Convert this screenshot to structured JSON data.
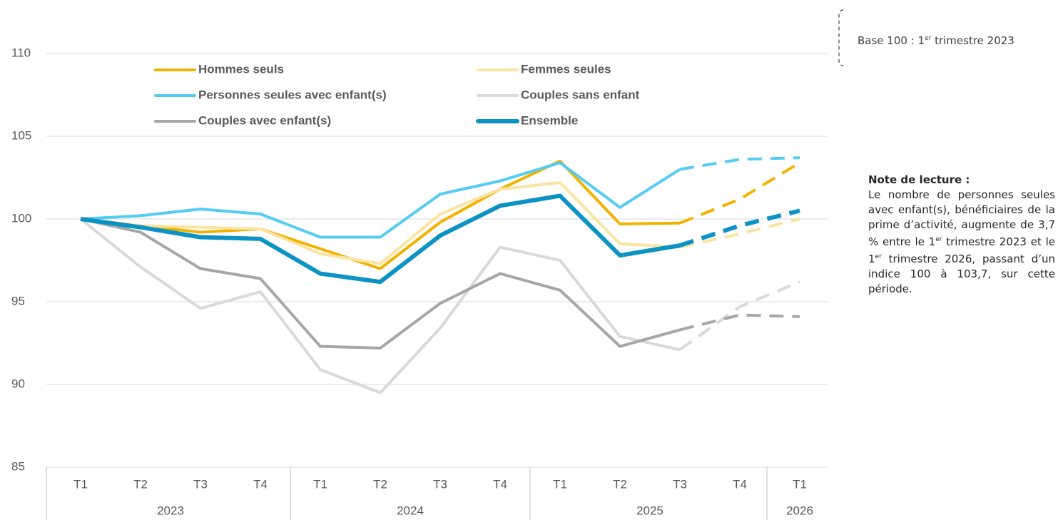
{
  "chart_data": {
    "type": "line",
    "categories": [
      "T1",
      "T2",
      "T3",
      "T4",
      "T1",
      "T2",
      "T3",
      "T4",
      "T1",
      "T2",
      "T3",
      "T4",
      "T1"
    ],
    "groups": [
      {
        "label": "2023",
        "span": 4
      },
      {
        "label": "2024",
        "span": 4
      },
      {
        "label": "2025",
        "span": 4
      },
      {
        "label": "2026",
        "span": 1
      }
    ],
    "ylim": [
      85,
      110
    ],
    "yticks": [
      85,
      90,
      95,
      100,
      105,
      110
    ],
    "grid": true,
    "legend": "top",
    "series": [
      {
        "name": "Hommes seuls",
        "color": "#f2b200",
        "width": 4,
        "dash_from": 10,
        "values": [
          100,
          99.6,
          99.2,
          99.4,
          98.2,
          97.0,
          99.8,
          101.8,
          103.5,
          99.7,
          99.75,
          101.2,
          103.4
        ]
      },
      {
        "name": "Femmes seules",
        "color": "#fbe4a2",
        "width": 4,
        "dash_from": 10,
        "values": [
          100,
          99.6,
          99.5,
          99.4,
          97.9,
          97.3,
          100.3,
          101.8,
          102.2,
          98.5,
          98.3,
          99.1,
          100.0
        ]
      },
      {
        "name": "Personnes seules avec enfant(s)",
        "color": "#55ccf2",
        "width": 4,
        "dash_from": 10,
        "values": [
          100,
          100.2,
          100.6,
          100.3,
          98.9,
          98.9,
          101.5,
          102.3,
          103.4,
          100.7,
          103.0,
          103.6,
          103.7
        ]
      },
      {
        "name": "Couples sans enfant",
        "color": "#d9d9d9",
        "width": 4,
        "dash_from": 10,
        "values": [
          100,
          97.1,
          94.6,
          95.6,
          90.9,
          89.5,
          93.4,
          98.3,
          97.5,
          92.9,
          92.1,
          94.7,
          96.2
        ]
      },
      {
        "name": "Couples avec enfant(s)",
        "color": "#a6a6a6",
        "width": 4,
        "dash_from": 10,
        "values": [
          100,
          99.2,
          97.0,
          96.4,
          92.3,
          92.2,
          94.9,
          96.7,
          95.7,
          92.3,
          93.3,
          94.2,
          94.1
        ]
      },
      {
        "name": "Ensemble",
        "color": "#0b93c4",
        "width": 6,
        "dash_from": 10,
        "values": [
          100,
          99.5,
          98.9,
          98.8,
          96.7,
          96.2,
          99.0,
          100.8,
          101.4,
          97.8,
          98.4,
          99.6,
          100.5
        ]
      }
    ],
    "annotations": {
      "base": [
        "Base 100 : 1",
        "er",
        " trimestre 2023"
      ],
      "note_title": "Note de lecture :",
      "note": [
        "Le nombre de personnes seules avec enfant(s), bénéficiaires de la prime d’activité, augmente de 3,7 % entre le 1",
        "er",
        " trimestre 2023 et le 1",
        "er",
        " trimestre 2026, passant d’un indice 100 à 103,7, sur cette période."
      ]
    }
  }
}
